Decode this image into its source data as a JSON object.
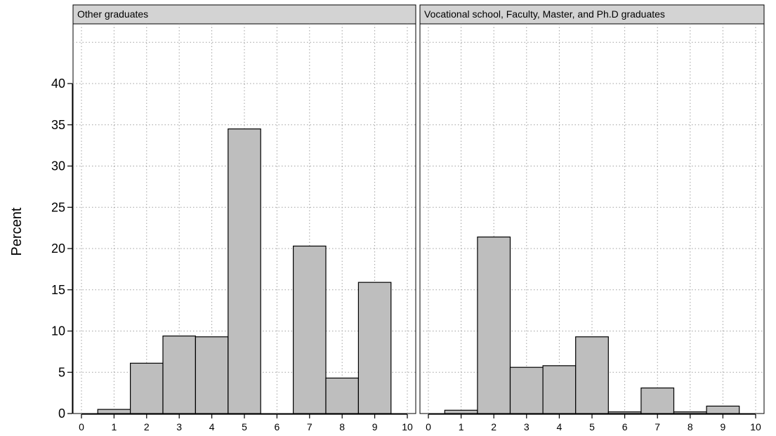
{
  "chart_data": [
    {
      "type": "bar",
      "title": "Other graduates",
      "x": [
        1,
        2,
        3,
        4,
        5,
        6,
        7,
        8,
        9
      ],
      "values": [
        0.5,
        6.1,
        9.4,
        9.3,
        34.5,
        0,
        20.3,
        4.3,
        15.9
      ],
      "xlabel": "",
      "ylabel": "Percent",
      "xlim": [
        0,
        10
      ],
      "ylim": [
        0,
        40
      ],
      "xticks": [
        0,
        1,
        2,
        3,
        4,
        5,
        6,
        7,
        8,
        9,
        10
      ],
      "yticks": [
        0,
        5,
        10,
        15,
        20,
        25,
        30,
        35,
        40
      ],
      "grid": true,
      "bar_color": "#bebebe"
    },
    {
      "type": "bar",
      "title": "Vocational school, Faculty, Master, and Ph.D graduates",
      "x": [
        1,
        2,
        3,
        4,
        5,
        6,
        7,
        8,
        9
      ],
      "values": [
        0.4,
        21.4,
        5.6,
        5.8,
        9.3,
        0.2,
        3.1,
        0.2,
        0.9
      ],
      "xlabel": "",
      "ylabel": "Percent",
      "xlim": [
        0,
        10
      ],
      "ylim": [
        0,
        40
      ],
      "xticks": [
        0,
        1,
        2,
        3,
        4,
        5,
        6,
        7,
        8,
        9,
        10
      ],
      "yticks": [
        0,
        5,
        10,
        15,
        20,
        25,
        30,
        35,
        40
      ],
      "grid": true,
      "bar_color": "#bebebe"
    }
  ]
}
